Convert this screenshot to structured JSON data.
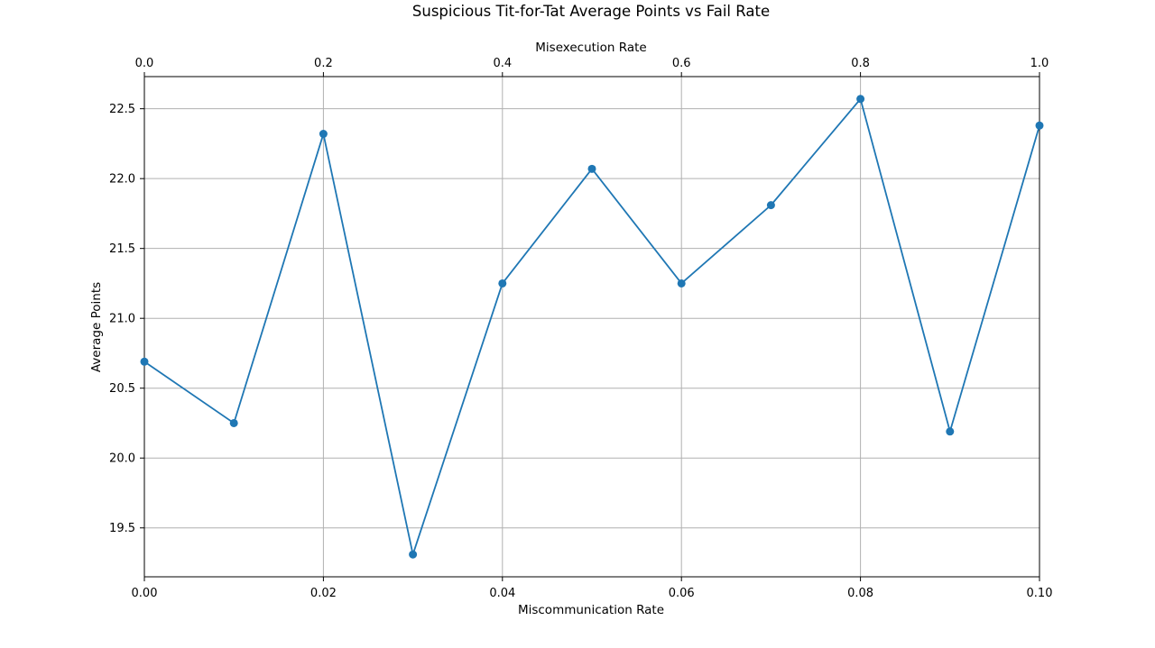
{
  "chart_data": {
    "type": "line",
    "title": "Suspicious Tit-for-Tat Average Points vs Fail Rate",
    "xlabel": "Miscommunication Rate",
    "x2label": "Misexecution Rate",
    "ylabel": "Average Points",
    "xlim": [
      0,
      0.1
    ],
    "x2lim": [
      0,
      1.0
    ],
    "ylim": [
      19.15,
      22.73
    ],
    "grid": true,
    "color": "#1f77b4",
    "x": [
      0.0,
      0.01,
      0.02,
      0.03,
      0.04,
      0.05,
      0.06,
      0.07,
      0.08,
      0.09,
      0.1
    ],
    "series": [
      {
        "values": [
          20.69,
          20.25,
          22.32,
          19.31,
          21.25,
          22.07,
          21.25,
          21.81,
          22.57,
          20.19,
          22.38
        ]
      }
    ],
    "xticks": [
      "0.00",
      "0.02",
      "0.04",
      "0.06",
      "0.08",
      "0.10"
    ],
    "x2ticks": [
      "0.0",
      "0.2",
      "0.4",
      "0.6",
      "0.8",
      "1.0"
    ],
    "yticks": [
      "19.5",
      "20.0",
      "20.5",
      "21.0",
      "21.5",
      "22.0",
      "22.5"
    ]
  }
}
